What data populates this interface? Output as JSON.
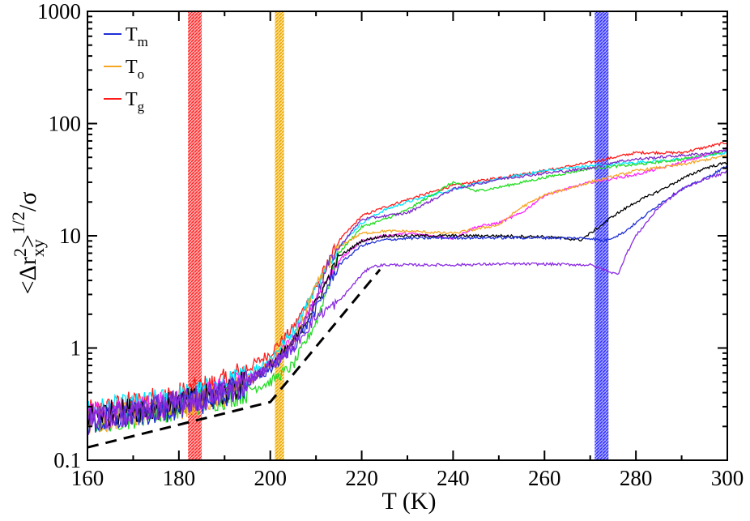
{
  "chart_data": {
    "type": "line",
    "title": "",
    "xlabel": "T  (K)",
    "ylabel": {
      "main": "<Δr",
      "sub": "xy",
      "sup": "2",
      "close": ">",
      "exp": "1/2",
      "tail": "/σ"
    },
    "xlim": [
      160,
      300
    ],
    "ylim": [
      0.1,
      1000
    ],
    "yscale": "log",
    "grid": false,
    "legend_position": "top-left",
    "x_ticks": [
      160,
      180,
      200,
      220,
      240,
      260,
      280,
      300
    ],
    "x_tick_labels": [
      "160",
      "180",
      "200",
      "220",
      "240",
      "260",
      "280",
      "300"
    ],
    "y_ticks": [
      0.1,
      1,
      10,
      100,
      1000
    ],
    "y_tick_labels": [
      "0.1",
      "1",
      "10",
      "100",
      "1000"
    ],
    "legend": [
      {
        "name": "T",
        "sub": "m",
        "color": "#1f2fd6"
      },
      {
        "name": "T",
        "sub": "o",
        "color": "#f5a623"
      },
      {
        "name": "T",
        "sub": "g",
        "color": "#ff1a1a"
      }
    ],
    "bands": [
      {
        "name": "T_g",
        "x_range": [
          182,
          185
        ],
        "color": "#ff3b3b"
      },
      {
        "name": "T_o",
        "x_range": [
          201,
          203
        ],
        "color": "#f0b400"
      },
      {
        "name": "T_m",
        "x_range": [
          271,
          274
        ],
        "color": "#3a3aff"
      }
    ],
    "reference_line": {
      "color": "#000000",
      "x": [
        160,
        200,
        224
      ],
      "y": [
        0.13,
        0.33,
        5.0
      ]
    },
    "series": [
      {
        "name": "red",
        "color": "#ff1a1a",
        "x": [
          160,
          170,
          180,
          190,
          195,
          200,
          205,
          210,
          215,
          220,
          225,
          230,
          240,
          250,
          260,
          270,
          280,
          290,
          300
        ],
        "y": [
          0.26,
          0.32,
          0.38,
          0.5,
          0.65,
          0.9,
          1.5,
          3.5,
          9,
          15,
          18,
          21,
          28,
          33,
          38,
          45,
          55,
          55,
          68
        ]
      },
      {
        "name": "cyan",
        "color": "#00e5ff",
        "x": [
          160,
          170,
          180,
          190,
          195,
          200,
          205,
          210,
          215,
          220,
          225,
          230,
          240,
          250,
          260,
          270,
          280,
          290,
          300
        ],
        "y": [
          0.27,
          0.3,
          0.36,
          0.45,
          0.58,
          0.8,
          1.4,
          3.5,
          8,
          13,
          17,
          20,
          26,
          32,
          38,
          42,
          45,
          48,
          55
        ]
      },
      {
        "name": "green",
        "color": "#22dd22",
        "x": [
          160,
          170,
          180,
          190,
          195,
          200,
          205,
          210,
          215,
          220,
          225,
          230,
          240,
          245,
          250,
          260,
          270,
          280,
          290,
          300
        ],
        "y": [
          0.22,
          0.25,
          0.3,
          0.37,
          0.42,
          0.5,
          0.7,
          1.7,
          7,
          12,
          14,
          17,
          30,
          25,
          27,
          33,
          40,
          43,
          48,
          57
        ]
      },
      {
        "name": "magenta",
        "color": "#ff22ff",
        "x": [
          160,
          170,
          180,
          190,
          195,
          200,
          205,
          210,
          215,
          220,
          225,
          230,
          235,
          240,
          245,
          250,
          255,
          260,
          270,
          280,
          290,
          300
        ],
        "y": [
          0.25,
          0.28,
          0.33,
          0.42,
          0.52,
          0.72,
          1.2,
          2.8,
          6,
          9,
          10,
          10.5,
          10,
          9.5,
          12,
          13,
          16,
          23,
          30,
          35,
          45,
          60
        ]
      },
      {
        "name": "orange",
        "color": "#f5a623",
        "x": [
          160,
          170,
          180,
          190,
          195,
          200,
          205,
          210,
          215,
          220,
          225,
          230,
          240,
          250,
          255,
          260,
          270,
          280,
          290,
          300
        ],
        "y": [
          0.22,
          0.26,
          0.3,
          0.38,
          0.5,
          0.72,
          1.1,
          3.5,
          8,
          10.5,
          11,
          11,
          10.5,
          12.5,
          18,
          23,
          30,
          38,
          43,
          52
        ]
      },
      {
        "name": "black",
        "color": "#000000",
        "x": [
          160,
          170,
          180,
          190,
          195,
          200,
          205,
          210,
          215,
          220,
          225,
          230,
          240,
          250,
          260,
          268,
          272,
          275,
          280,
          285,
          290,
          295,
          300
        ],
        "y": [
          0.25,
          0.28,
          0.32,
          0.4,
          0.5,
          0.7,
          1.1,
          2.5,
          6.5,
          9,
          10,
          10,
          10,
          10,
          9.8,
          9.2,
          12,
          15,
          20,
          25,
          32,
          40,
          45
        ]
      },
      {
        "name": "blue",
        "color": "#1f2fd6",
        "x": [
          160,
          170,
          180,
          190,
          195,
          200,
          205,
          210,
          215,
          220,
          225,
          230,
          240,
          250,
          260,
          270,
          273,
          277,
          280,
          285,
          290,
          295,
          300
        ],
        "y": [
          0.21,
          0.25,
          0.3,
          0.38,
          0.48,
          0.65,
          1.0,
          2.2,
          5.5,
          8.2,
          9.2,
          9.5,
          9.6,
          9.6,
          9.6,
          9.5,
          9.0,
          10.5,
          13,
          19,
          26,
          32,
          42
        ]
      },
      {
        "name": "purple",
        "color": "#7b28c8",
        "x": [
          160,
          170,
          180,
          190,
          195,
          200,
          205,
          210,
          213,
          217,
          220,
          225,
          230,
          240,
          250,
          260,
          270,
          274,
          276,
          278,
          280,
          285,
          290,
          295,
          300
        ],
        "y": [
          0.22,
          0.27,
          0.33,
          0.4,
          0.5,
          0.7,
          1.1,
          2.8,
          6,
          10,
          14,
          15,
          16,
          26,
          32,
          36,
          40,
          44,
          46,
          47,
          48,
          50,
          52,
          54,
          58
        ]
      },
      {
        "name": "violet",
        "color": "#8a2be2",
        "x": [
          160,
          170,
          180,
          190,
          195,
          200,
          205,
          210,
          215,
          220,
          222,
          225,
          230,
          240,
          250,
          260,
          270,
          273,
          276,
          278,
          280,
          285,
          290,
          295,
          300
        ],
        "y": [
          0.23,
          0.27,
          0.32,
          0.4,
          0.5,
          0.7,
          1.0,
          1.9,
          2.6,
          4.5,
          5.3,
          5.5,
          5.5,
          5.5,
          5.6,
          5.6,
          5.5,
          5.0,
          4.5,
          7,
          10,
          18,
          26,
          32,
          37
        ]
      }
    ]
  }
}
